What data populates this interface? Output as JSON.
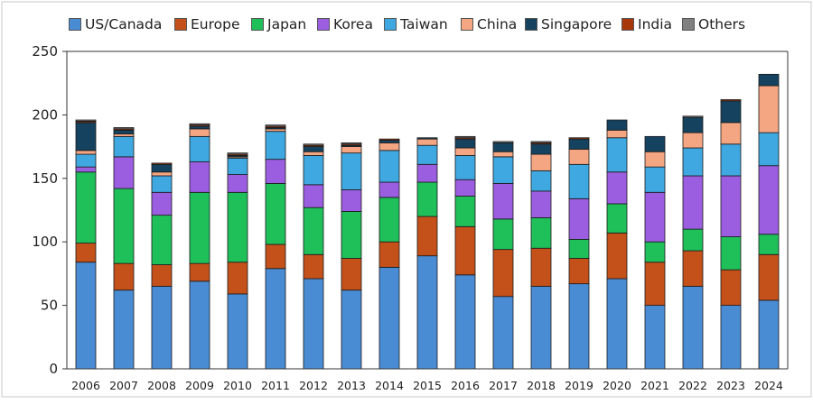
{
  "chart_data": {
    "type": "bar",
    "stacked": true,
    "title": "",
    "xlabel": "",
    "ylabel": "",
    "ylim": [
      0,
      250
    ],
    "yticks": [
      0,
      50,
      100,
      150,
      200,
      250
    ],
    "grid": false,
    "legend_position": "top",
    "categories": [
      "2006",
      "2007",
      "2008",
      "2009",
      "2010",
      "2011",
      "2012",
      "2013",
      "2014",
      "2015",
      "2016",
      "2017",
      "2018",
      "2019",
      "2020",
      "2021",
      "2022",
      "2023",
      "2024"
    ],
    "series": [
      {
        "name": "US/Canada",
        "color": "#4a8cd4",
        "values": [
          84,
          62,
          65,
          69,
          59,
          79,
          71,
          62,
          80,
          89,
          74,
          57,
          65,
          67,
          71,
          50,
          65,
          50,
          54
        ]
      },
      {
        "name": "Europe",
        "color": "#c4511a",
        "values": [
          15,
          21,
          17,
          14,
          25,
          19,
          19,
          25,
          20,
          31,
          38,
          37,
          30,
          20,
          36,
          34,
          28,
          28,
          36
        ]
      },
      {
        "name": "Japan",
        "color": "#1fbf5a",
        "values": [
          56,
          59,
          39,
          56,
          55,
          48,
          37,
          37,
          35,
          27,
          24,
          24,
          24,
          15,
          23,
          16,
          17,
          26,
          16
        ]
      },
      {
        "name": "Korea",
        "color": "#9c5ee0",
        "values": [
          4,
          25,
          18,
          24,
          14,
          19,
          18,
          17,
          12,
          14,
          13,
          28,
          21,
          32,
          25,
          39,
          42,
          48,
          54
        ]
      },
      {
        "name": "Taiwan",
        "color": "#40a8e0",
        "values": [
          10,
          16,
          13,
          20,
          13,
          22,
          23,
          29,
          25,
          15,
          19,
          21,
          16,
          27,
          27,
          20,
          22,
          25,
          26
        ]
      },
      {
        "name": "China",
        "color": "#f4a582",
        "values": [
          3,
          2,
          3,
          6,
          1,
          2,
          3,
          5,
          6,
          5,
          6,
          4,
          13,
          12,
          6,
          12,
          12,
          17,
          37
        ]
      },
      {
        "name": "Singapore",
        "color": "#15435f",
        "values": [
          22,
          3,
          6,
          2,
          1,
          1,
          4,
          1,
          2,
          1,
          7,
          7,
          8,
          8,
          8,
          12,
          12,
          17,
          9
        ]
      },
      {
        "name": "India",
        "color": "#a8380c",
        "values": [
          1,
          1,
          1,
          1,
          1,
          1,
          1,
          1,
          1,
          0,
          1,
          0,
          1,
          1,
          0,
          0,
          0,
          1,
          0
        ]
      },
      {
        "name": "Others",
        "color": "#808080",
        "values": [
          1,
          1,
          0,
          1,
          1,
          1,
          1,
          1,
          0,
          0,
          1,
          1,
          1,
          0,
          0,
          0,
          1,
          0,
          0
        ]
      }
    ]
  }
}
